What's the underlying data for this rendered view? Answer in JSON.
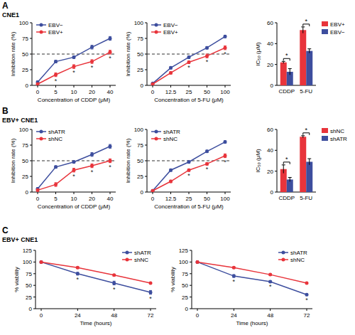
{
  "panels": [
    {
      "label": "A",
      "subtitle": "CNE1"
    },
    {
      "label": "B",
      "subtitle": "EBV+ CNE1"
    },
    {
      "label": "C",
      "subtitle": "EBV+ CNE1"
    }
  ],
  "chart_data": [
    {
      "type": "line",
      "x_label": "Concentration of CDDP (μM)",
      "y_label": "Inhibition rate (%)",
      "categories": [
        "0",
        "5",
        "10",
        "20",
        "40"
      ],
      "ylim": [
        0,
        100
      ],
      "yticks": [
        0,
        25,
        50,
        75,
        100
      ],
      "hline": 50,
      "legend": "upper left",
      "series": [
        {
          "name": "EBV−",
          "color": "#3d4e9e",
          "marker": "circle",
          "values": [
            5,
            38,
            45,
            61,
            75
          ],
          "errors": [
            2,
            2,
            2,
            3,
            3
          ],
          "significance": [
            null,
            null,
            null,
            null,
            null
          ]
        },
        {
          "name": "EBV+",
          "color": "#e8343b",
          "marker": "circle",
          "values": [
            2,
            17,
            30,
            38,
            53
          ],
          "errors": [
            2,
            3,
            3,
            3,
            3
          ],
          "significance": [
            null,
            "*",
            "*",
            "*",
            "*"
          ]
        }
      ]
    },
    {
      "type": "line",
      "x_label": "Concentration of 5-FU (μM)",
      "y_label": "Inhibition rate (%)",
      "categories": [
        "0",
        "12.5",
        "25",
        "50",
        "100"
      ],
      "ylim": [
        0,
        100
      ],
      "yticks": [
        0,
        25,
        50,
        75,
        100
      ],
      "hline": 50,
      "legend": "upper left",
      "series": [
        {
          "name": "EBV−",
          "color": "#3d4e9e",
          "marker": "circle",
          "values": [
            3,
            28,
            45,
            60,
            78
          ],
          "errors": [
            1,
            2,
            2,
            2,
            2
          ],
          "significance": [
            null,
            null,
            null,
            null,
            null
          ]
        },
        {
          "name": "EBV+",
          "color": "#e8343b",
          "marker": "circle",
          "values": [
            2,
            20,
            37,
            47,
            60
          ],
          "errors": [
            1,
            2,
            2,
            3,
            3
          ],
          "significance": [
            null,
            null,
            "*",
            "*",
            "*"
          ]
        }
      ]
    },
    {
      "type": "bar",
      "y_label": "IC₅₀ (μM)",
      "categories": [
        "CDDP",
        "5-FU"
      ],
      "ylim": [
        0,
        60
      ],
      "yticks": [
        0,
        20,
        40,
        60
      ],
      "legend": "upper right",
      "significance": [
        "*",
        "*"
      ],
      "series": [
        {
          "name": "EBV+",
          "color": "#e8343b",
          "values": [
            22,
            53
          ],
          "errors": [
            1,
            3
          ]
        },
        {
          "name": "EBV−",
          "color": "#3d4e9e",
          "values": [
            13,
            33
          ],
          "errors": [
            3,
            2
          ]
        }
      ]
    },
    {
      "type": "line",
      "x_label": "Concentration of CDDP (μM)",
      "y_label": "Inhibition rate (%)",
      "categories": [
        "0",
        "5",
        "10",
        "20",
        "40"
      ],
      "ylim": [
        0,
        100
      ],
      "yticks": [
        0,
        25,
        50,
        75,
        100
      ],
      "hline": 50,
      "legend": "upper left",
      "series": [
        {
          "name": "shATR",
          "color": "#3d4e9e",
          "marker": "circle",
          "values": [
            5,
            40,
            48,
            60,
            73
          ],
          "errors": [
            2,
            2,
            2,
            3,
            3
          ],
          "significance": [
            null,
            null,
            null,
            null,
            null
          ]
        },
        {
          "name": "shNC",
          "color": "#e8343b",
          "marker": "circle",
          "values": [
            3,
            12,
            35,
            42,
            50
          ],
          "errors": [
            2,
            3,
            3,
            3,
            3
          ],
          "significance": [
            null,
            null,
            "*",
            "*",
            "*"
          ]
        }
      ]
    },
    {
      "type": "line",
      "x_label": "Concentration of 5-FU (μM)",
      "y_label": "Inhibition rate (%)",
      "categories": [
        "0",
        "12.5",
        "25",
        "50",
        "100"
      ],
      "ylim": [
        0,
        100
      ],
      "yticks": [
        0,
        25,
        50,
        75,
        100
      ],
      "hline": 50,
      "legend": "upper left",
      "series": [
        {
          "name": "shATR",
          "color": "#3d4e9e",
          "marker": "circle",
          "values": [
            2,
            35,
            48,
            65,
            80
          ],
          "errors": [
            1,
            2,
            2,
            2,
            2
          ],
          "significance": [
            null,
            null,
            null,
            null,
            null
          ]
        },
        {
          "name": "shNC",
          "color": "#e8343b",
          "marker": "circle",
          "values": [
            2,
            17,
            35,
            45,
            58
          ],
          "errors": [
            1,
            2,
            2,
            2,
            3
          ],
          "significance": [
            null,
            null,
            "*",
            "*",
            "*"
          ]
        }
      ]
    },
    {
      "type": "bar",
      "y_label": "IC₅₀ (μM)",
      "categories": [
        "CDDP",
        "5-FU"
      ],
      "ylim": [
        0,
        60
      ],
      "yticks": [
        0,
        20,
        40,
        60
      ],
      "legend": "upper right",
      "significance": [
        "*",
        "*"
      ],
      "series": [
        {
          "name": "shNC",
          "color": "#e8343b",
          "values": [
            22,
            53
          ],
          "errors": [
            4,
            1
          ]
        },
        {
          "name": "shATR",
          "color": "#3d4e9e",
          "values": [
            12,
            29
          ],
          "errors": [
            2,
            3
          ]
        }
      ]
    },
    {
      "type": "line",
      "x_label": "Time (hours)",
      "y_label": "% viability",
      "categories": [
        "0",
        "24",
        "48",
        "72"
      ],
      "ylim": [
        0,
        125
      ],
      "yticks": [
        0,
        25,
        50,
        75,
        100,
        125
      ],
      "legend": "upper right",
      "series": [
        {
          "name": "shATR",
          "color": "#3d4e9e",
          "marker": "circle",
          "values": [
            100,
            75,
            55,
            35
          ],
          "errors": [
            2,
            3,
            4,
            4
          ],
          "significance": [
            null,
            "*",
            "*",
            "*"
          ]
        },
        {
          "name": "shNC",
          "color": "#e8343b",
          "marker": "circle",
          "values": [
            100,
            88,
            72,
            55
          ],
          "errors": [
            2,
            2,
            2,
            2
          ],
          "significance": [
            null,
            null,
            null,
            null
          ]
        }
      ]
    },
    {
      "type": "line",
      "x_label": "Time (hours)",
      "y_label": "% viability",
      "categories": [
        "0",
        "24",
        "48",
        "72"
      ],
      "ylim": [
        0,
        125
      ],
      "yticks": [
        0,
        25,
        50,
        75,
        100,
        125
      ],
      "legend": "upper right",
      "series": [
        {
          "name": "shATR",
          "color": "#3d4e9e",
          "marker": "circle",
          "values": [
            100,
            70,
            58,
            30
          ],
          "errors": [
            2,
            3,
            2,
            2
          ],
          "significance": [
            null,
            "*",
            "*",
            "*"
          ]
        },
        {
          "name": "shNC",
          "color": "#e8343b",
          "marker": "circle",
          "values": [
            100,
            88,
            73,
            55
          ],
          "errors": [
            2,
            2,
            2,
            2
          ],
          "significance": [
            null,
            null,
            null,
            null
          ]
        }
      ]
    }
  ]
}
